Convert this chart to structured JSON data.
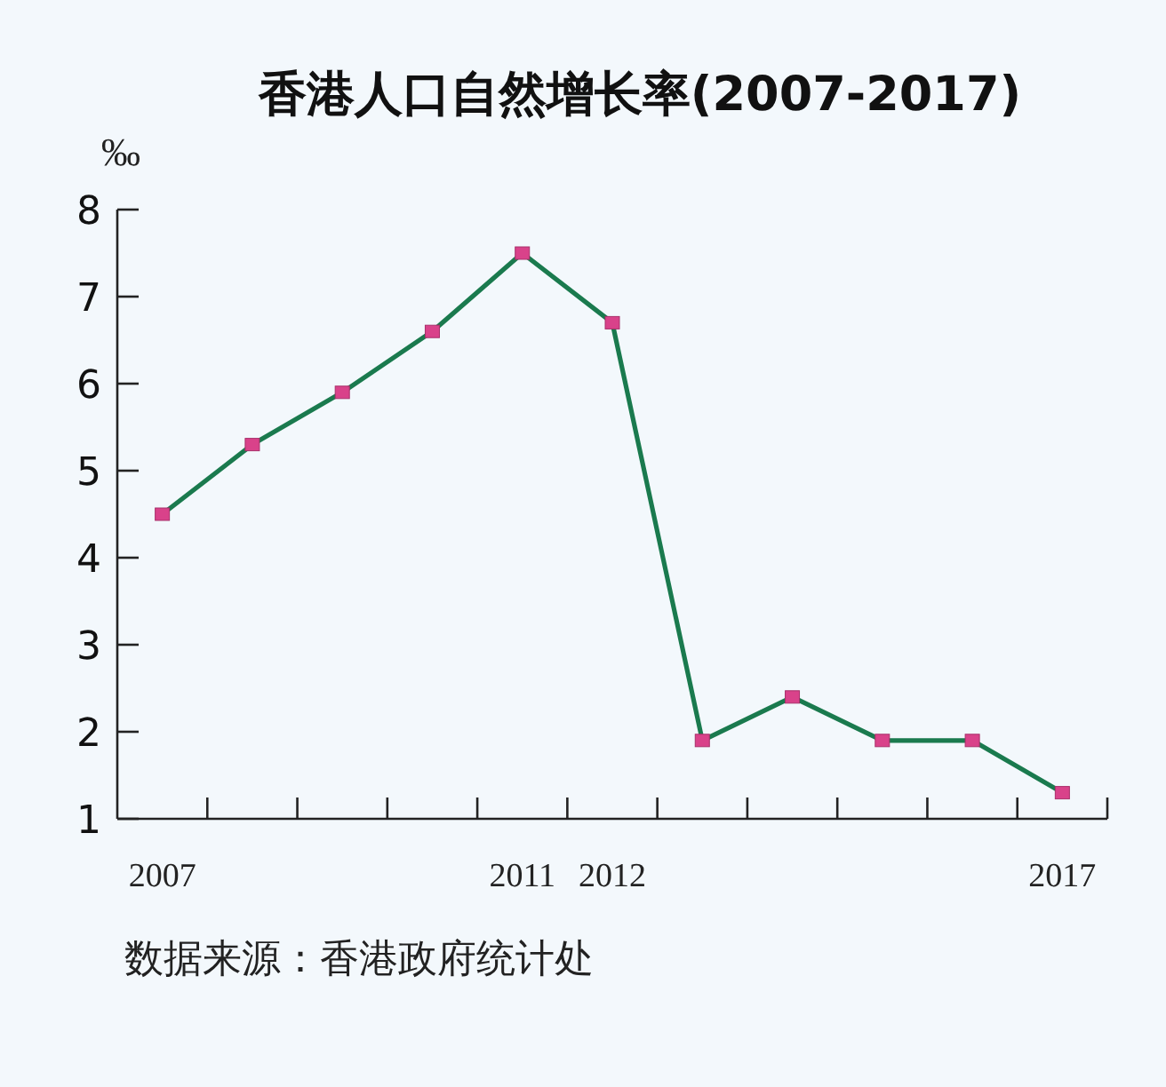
{
  "chart_data": {
    "type": "line",
    "title": "香港人口自然增长率(2007-2017)",
    "ylabel": "‰",
    "categories": [
      "2007",
      null,
      null,
      null,
      "2011",
      "2012",
      null,
      null,
      null,
      null,
      "2017"
    ],
    "series": [
      {
        "color": "#1a7a4e",
        "values": [
          4.5,
          5.3,
          5.9,
          6.6,
          7.5,
          6.7,
          1.9,
          2.4,
          1.9,
          1.9,
          1.3
        ]
      }
    ],
    "ylim": [
      1,
      8
    ],
    "yticks": [
      1,
      2,
      3,
      4,
      5,
      6,
      7,
      8
    ],
    "marker": "square",
    "line_style": "solid",
    "grid": false,
    "annotations": [
      "数据来源：香港政府统计处"
    ]
  }
}
